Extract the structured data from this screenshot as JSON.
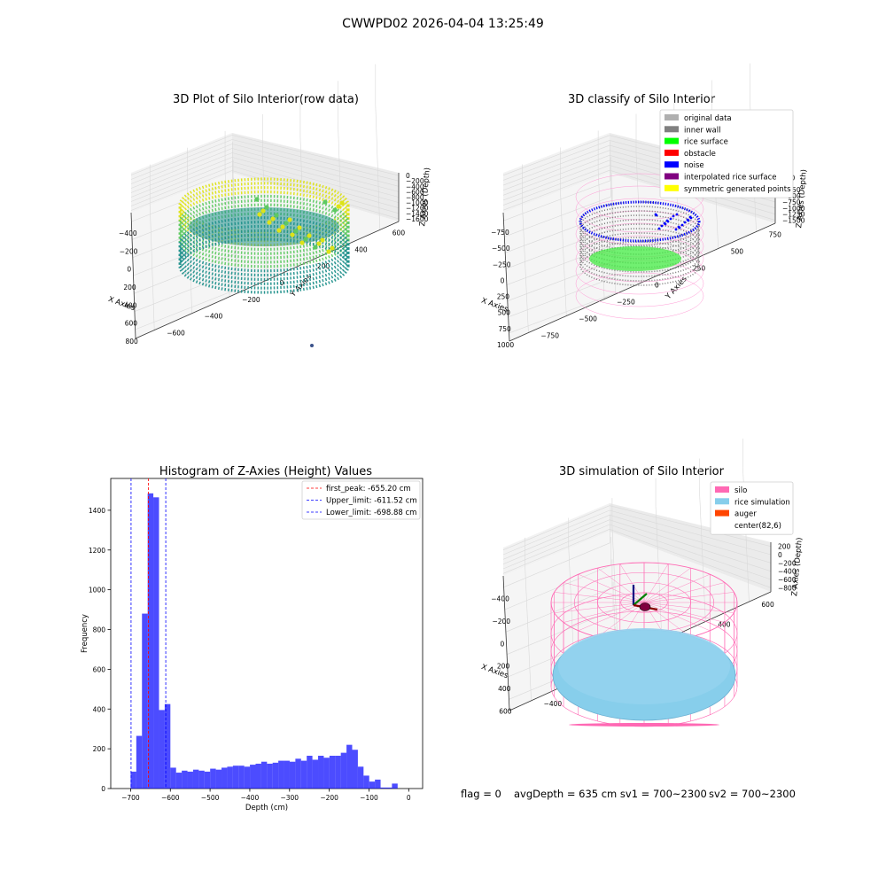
{
  "suptitle": "CWWPD02 2026-04-04 13:25:49",
  "footer": {
    "flag": "flag = 0",
    "avg": "avgDepth = 635 cm  sv1 = 700~2300",
    "sv2": "sv2 = 700~2300"
  },
  "chart_data": [
    {
      "type": "scatter",
      "title": "3D Plot of Silo Interior(row data)",
      "xlabel": "X Axies",
      "ylabel": "Y Axies",
      "zlabel": "Z Axies (Depth)",
      "xticks": [
        "−400",
        "−200",
        "0",
        "200",
        "400",
        "600",
        "800"
      ],
      "yticks": [
        "−600",
        "−400",
        "−200",
        "0",
        "200",
        "400",
        "600"
      ],
      "zticks": [
        "0",
        "−200",
        "−400",
        "−600",
        "−800",
        "−1000",
        "−1200",
        "−1400",
        "−1600"
      ],
      "colormap": "viridis",
      "colors": {
        "high": "#dde318",
        "mid": "#5ec962",
        "low": "#21918c",
        "outlier": "#3b528b"
      }
    },
    {
      "type": "scatter",
      "title": "3D classify of Silo Interior",
      "xlabel": "X Axies",
      "ylabel": "Y Axies",
      "zlabel": "Z Axies (Depth)",
      "xticks": [
        "−750",
        "−500",
        "−250",
        "0",
        "250",
        "500",
        "750",
        "1000"
      ],
      "yticks": [
        "−750",
        "−500",
        "−250",
        "0",
        "250",
        "500",
        "750"
      ],
      "zticks": [
        "250",
        "0",
        "−250",
        "−500",
        "−750",
        "−1000",
        "−1250",
        "−1500"
      ],
      "legend": {
        "position": "top-right",
        "entries": [
          {
            "label": "original data",
            "color": "#b0b0b0"
          },
          {
            "label": "inner wall",
            "color": "#808080"
          },
          {
            "label": "rice surface",
            "color": "#00ff00"
          },
          {
            "label": "obstacle",
            "color": "#ff0000"
          },
          {
            "label": "noise",
            "color": "#0000ff"
          },
          {
            "label": "interpolated rice surface",
            "color": "#800080"
          },
          {
            "label": "symmetric generated points",
            "color": "#ffff00"
          }
        ]
      }
    },
    {
      "type": "bar",
      "title": "Histogram of Z-Axies (Height) Values",
      "xlabel": "Depth (cm)",
      "ylabel": "Frequency",
      "xlim": [
        -750,
        35
      ],
      "ylim": [
        0,
        1560
      ],
      "xticks": [
        -700,
        -600,
        -500,
        -400,
        -300,
        -200,
        -100,
        0
      ],
      "yticks": [
        0,
        200,
        400,
        600,
        800,
        1000,
        1200,
        1400
      ],
      "bin_start": -700,
      "bin_width": 14.3,
      "values": [
        85,
        265,
        880,
        1485,
        1465,
        395,
        425,
        105,
        80,
        90,
        85,
        95,
        90,
        85,
        100,
        95,
        105,
        110,
        115,
        115,
        110,
        120,
        125,
        135,
        125,
        130,
        140,
        140,
        135,
        150,
        140,
        165,
        145,
        165,
        155,
        165,
        165,
        180,
        220,
        195,
        110,
        65,
        35,
        45,
        5,
        5,
        25
      ],
      "bar_color": "#0000ff",
      "vlines": [
        {
          "label": "first_peak: -655.20 cm",
          "x": -655.2,
          "color": "#ff0000"
        },
        {
          "label": "Upper_limit: -611.52 cm",
          "x": -611.52,
          "color": "#0000ff"
        },
        {
          "label": "Lower_limit: -698.88 cm",
          "x": -698.88,
          "color": "#0000ff"
        }
      ],
      "legend_position": "top-right"
    },
    {
      "type": "scatter",
      "title": "3D simulation of Silo Interior",
      "xlabel": "X Axies",
      "ylabel": "Y Axies",
      "zlabel": "Z Axies (Depth)",
      "xticks": [
        "−400",
        "−200",
        "0",
        "200",
        "400",
        "600"
      ],
      "yticks": [
        "−400",
        "−200",
        "0",
        "200",
        "400",
        "600"
      ],
      "zticks": [
        "200",
        "0",
        "−200",
        "−400",
        "−600",
        "−800"
      ],
      "legend": {
        "position": "top-right",
        "entries": [
          {
            "label": "silo",
            "color": "#ff69b4"
          },
          {
            "label": "rice simulation",
            "color": "#87ceeb"
          },
          {
            "label": "auger",
            "color": "#ff4500"
          },
          {
            "label": "center(82,6)",
            "color": ""
          }
        ]
      }
    }
  ]
}
